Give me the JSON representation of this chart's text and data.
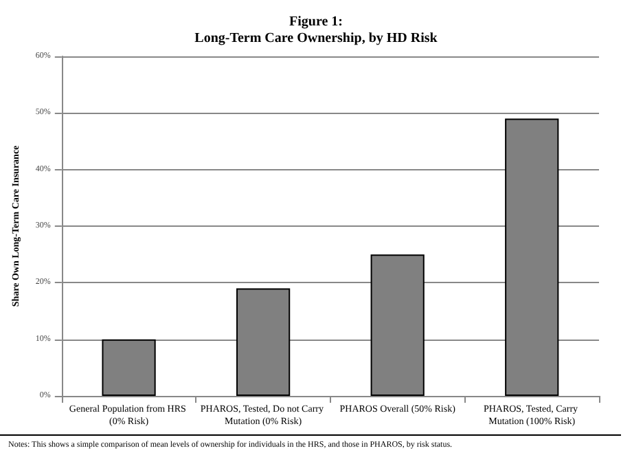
{
  "chart_data": {
    "type": "bar",
    "title": "Figure 1:\nLong-Term Care Ownership, by HD Risk",
    "ylabel": "Share Own Long-Term Care Insurance",
    "categories": [
      "General Population from HRS (0% Risk)",
      "PHAROS, Tested, Do not Carry Mutation (0% Risk)",
      "PHAROS Overall (50% Risk)",
      "PHAROS, Tested, Carry Mutation (100% Risk)"
    ],
    "values": [
      10,
      19,
      25,
      49
    ],
    "color": "#808080",
    "ylim": [
      0,
      60
    ],
    "yticks": [
      {
        "value": 0,
        "label": "0%"
      },
      {
        "value": 10,
        "label": "10%"
      },
      {
        "value": 20,
        "label": "20%"
      },
      {
        "value": 30,
        "label": "30%"
      },
      {
        "value": 40,
        "label": "40%"
      },
      {
        "value": 50,
        "label": "50%"
      },
      {
        "value": 60,
        "label": "60%"
      }
    ],
    "grid": "y",
    "annotations": [
      "Notes: This shows a simple comparison of mean levels of ownership for individuals in the HRS, and those in PHAROS, by risk status."
    ]
  }
}
